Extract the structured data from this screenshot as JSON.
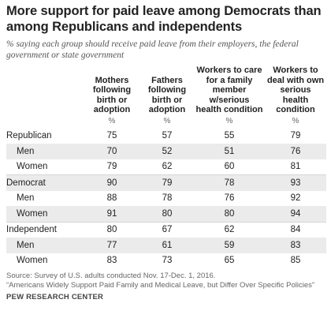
{
  "title": "More support for paid leave among Democrats than among Republicans and independents",
  "subtitle": "% saying each group should receive paid leave from their employers, the federal government or state government",
  "chart_data": {
    "type": "table",
    "columns": [
      "Mothers following birth or adoption",
      "Fathers following birth or adoption",
      "Workers to care for a family member w/serious health condition",
      "Workers to deal with own serious health condition"
    ],
    "unit_row": [
      "%",
      "%",
      "%",
      "%"
    ],
    "rows": [
      {
        "label": "Republican",
        "level": "group",
        "values": [
          75,
          57,
          55,
          79
        ]
      },
      {
        "label": "Men",
        "level": "sub",
        "values": [
          70,
          52,
          51,
          76
        ]
      },
      {
        "label": "Women",
        "level": "sub",
        "values": [
          79,
          62,
          60,
          81
        ]
      },
      {
        "label": "Democrat",
        "level": "group",
        "values": [
          90,
          79,
          78,
          93
        ]
      },
      {
        "label": "Men",
        "level": "sub",
        "values": [
          88,
          78,
          76,
          92
        ]
      },
      {
        "label": "Women",
        "level": "sub",
        "values": [
          91,
          80,
          80,
          94
        ]
      },
      {
        "label": "Independent",
        "level": "group",
        "values": [
          80,
          67,
          62,
          84
        ]
      },
      {
        "label": "Men",
        "level": "sub",
        "values": [
          77,
          61,
          59,
          83
        ]
      },
      {
        "label": "Women",
        "level": "sub",
        "values": [
          83,
          73,
          65,
          85
        ]
      }
    ]
  },
  "source_lines": [
    "Source: Survey of U.S. adults conducted Nov. 17-Dec. 1, 2016.",
    "“Americans Widely Support Paid Family and Medical Leave, but Differ Over Specific Policies”"
  ],
  "org": "PEW RESEARCH CENTER",
  "colors": {
    "shade": "#ebebeb",
    "title": "#222222",
    "subtitle": "#555555"
  }
}
